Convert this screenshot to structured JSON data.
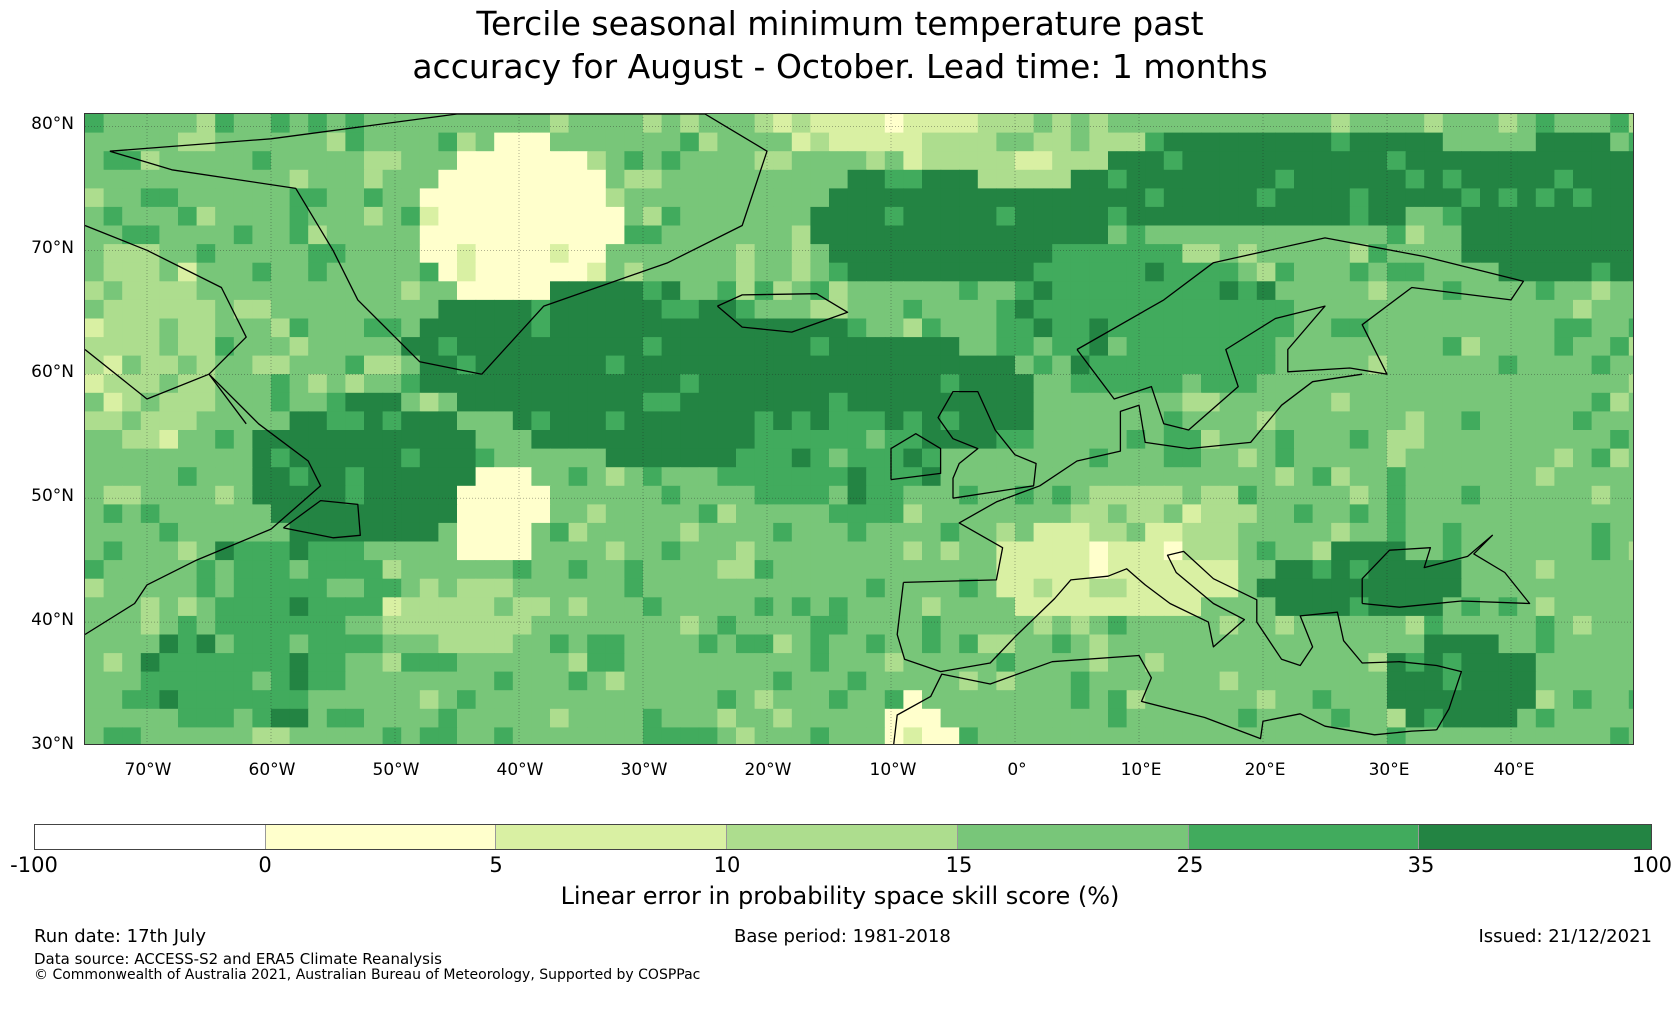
{
  "title_line1": "Tercile seasonal minimum temperature past",
  "title_line2": "accuracy for August - October. Lead time: 1 months",
  "map": {
    "lat_labels": [
      "80°N",
      "70°N",
      "60°N",
      "50°N",
      "40°N",
      "30°N"
    ],
    "lon_labels": [
      "70°W",
      "60°W",
      "50°W",
      "40°W",
      "30°W",
      "20°W",
      "10°W",
      "0°",
      "10°E",
      "20°E",
      "30°E",
      "40°E"
    ]
  },
  "colorbar": {
    "ticks": [
      "-100",
      "0",
      "5",
      "10",
      "15",
      "25",
      "35",
      "100"
    ],
    "colors": [
      "#ffffff",
      "#ffffcc",
      "#d9f0a3",
      "#addd8e",
      "#78c679",
      "#41ab5d",
      "#238443"
    ],
    "label": "Linear error in probability space skill score (%)"
  },
  "footer": {
    "run_date": "Run date: 17th July",
    "base_period": "Base period: 1981-2018",
    "issued": "Issued: 21/12/2021",
    "data_source": "Data source: ACCESS-S2 and ERA5 Climate Reanalysis",
    "copyright": "© Commonwealth of Australia 2021, Australian Bureau of Meteorology, Supported by COSPPac"
  }
}
